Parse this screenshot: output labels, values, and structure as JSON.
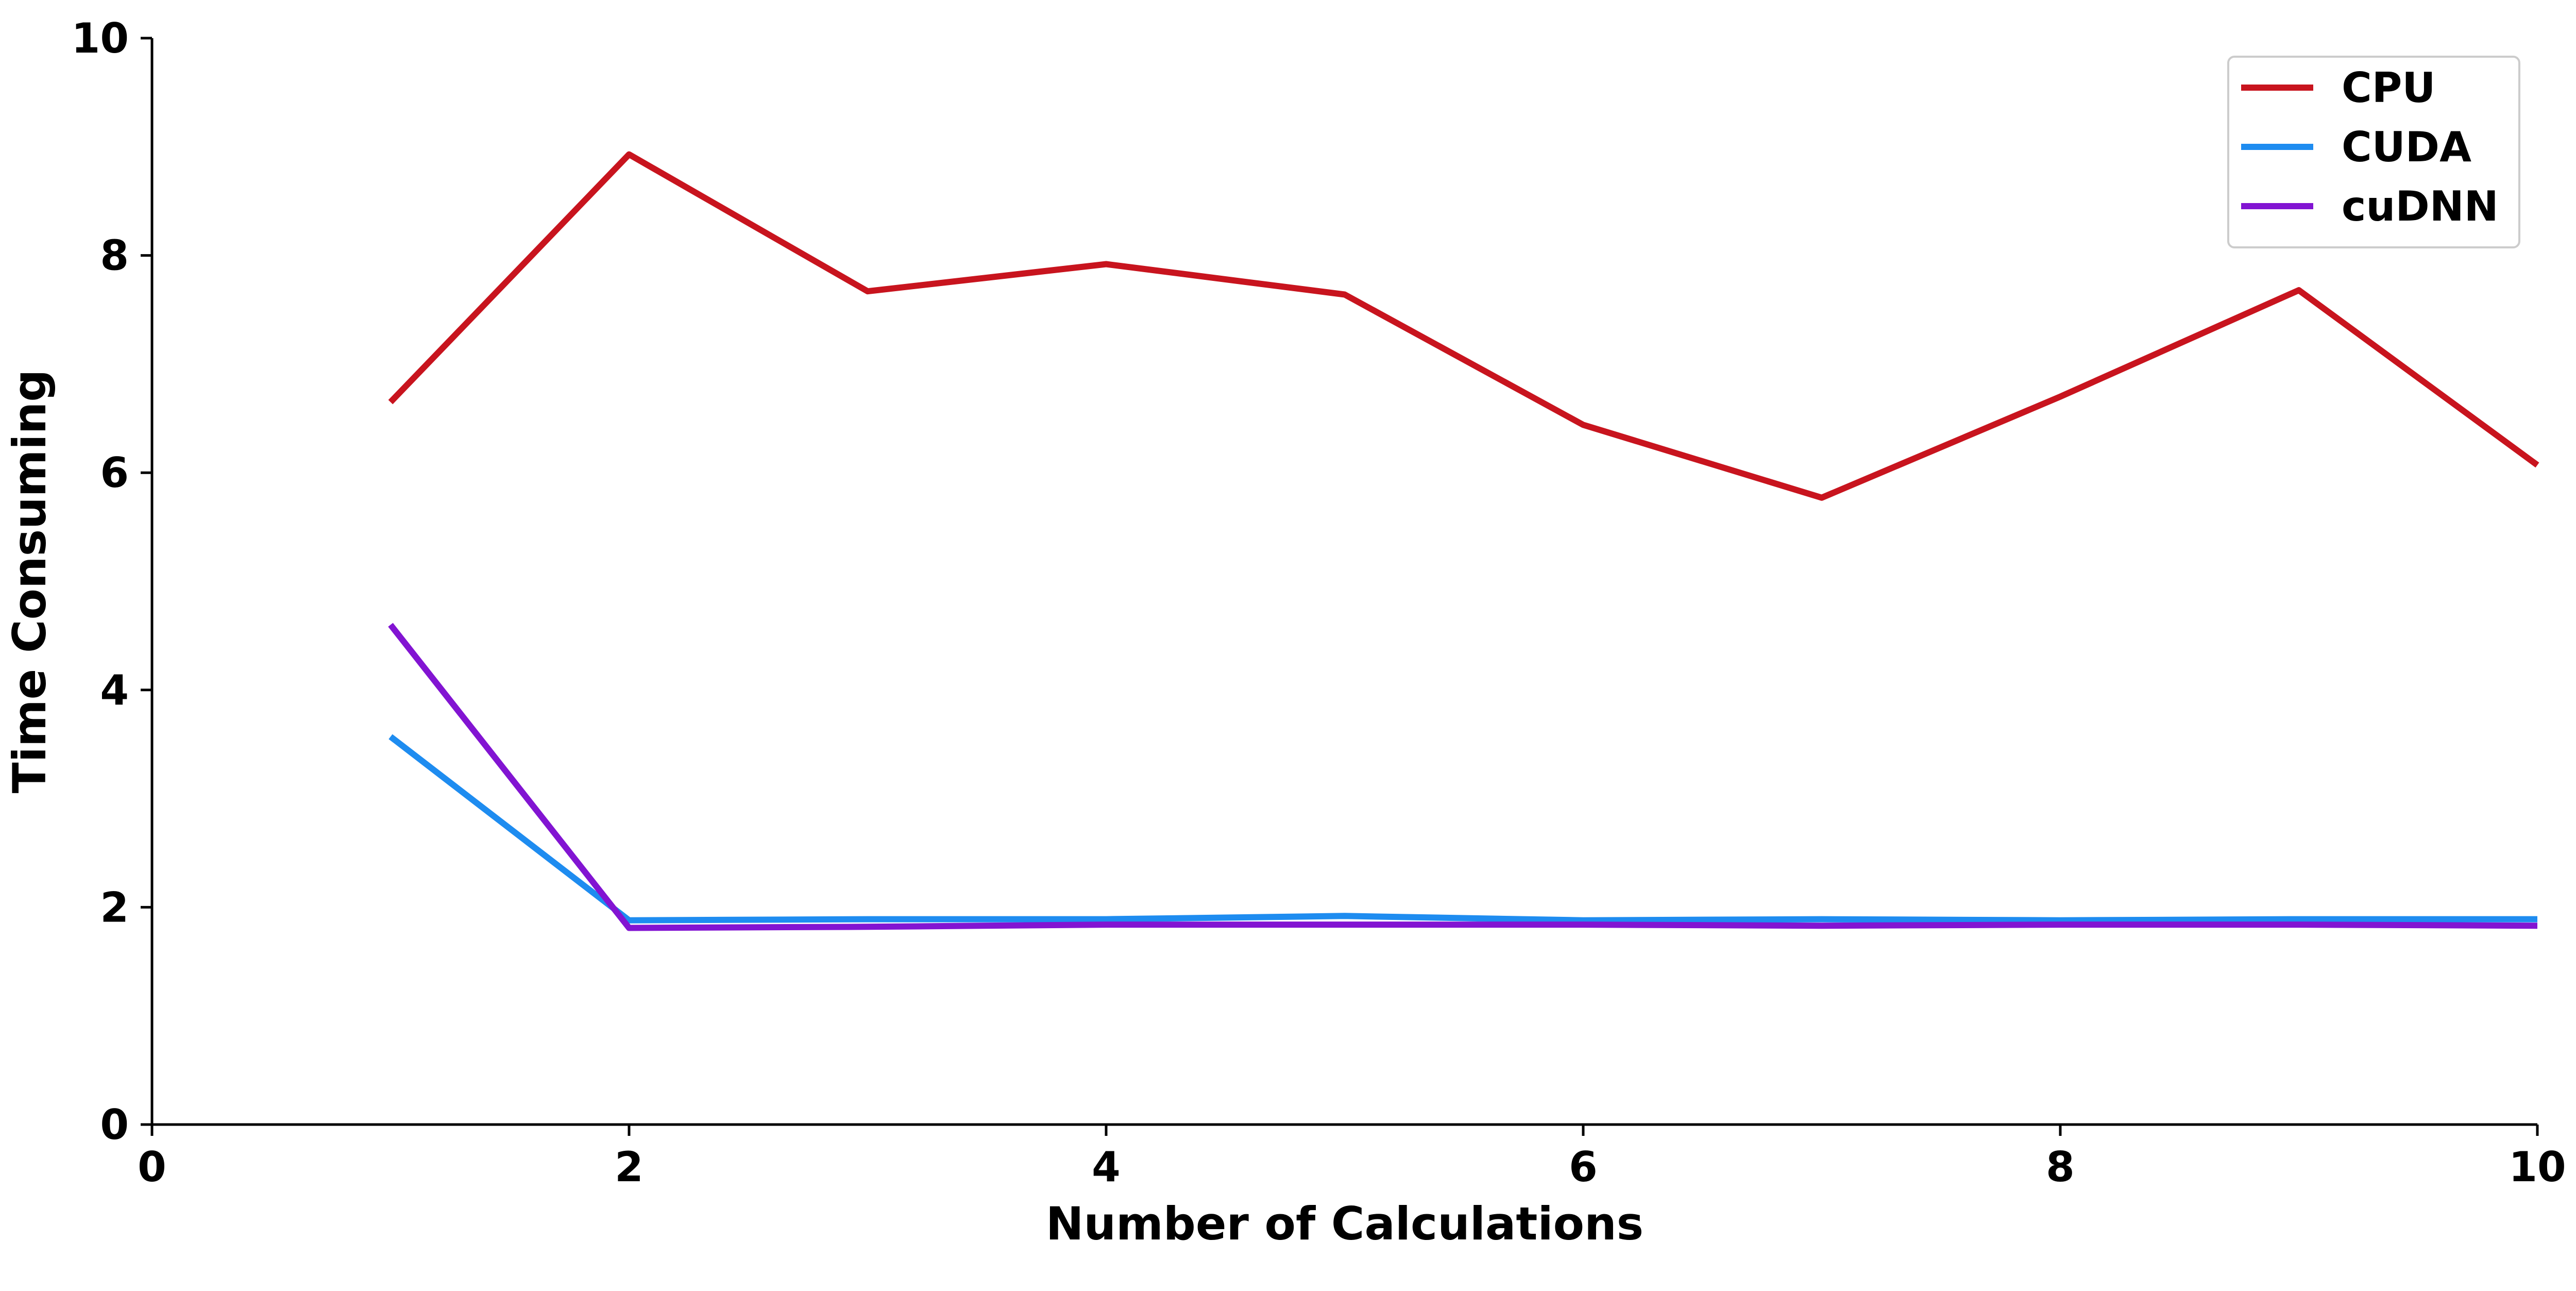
{
  "chart_data": {
    "type": "line",
    "xlabel": "Number of Calculations",
    "ylabel": "Time Consuming",
    "xlim": [
      0,
      10
    ],
    "ylim": [
      0,
      10
    ],
    "xticks": [
      0,
      2,
      4,
      6,
      8,
      10
    ],
    "yticks": [
      0,
      2,
      4,
      6,
      8,
      10
    ],
    "x": [
      1,
      2,
      3,
      4,
      5,
      6,
      7,
      8,
      9,
      10
    ],
    "series": [
      {
        "name": "CPU",
        "color": "#c8141e",
        "values": [
          6.65,
          8.93,
          7.67,
          7.92,
          7.64,
          6.44,
          5.77,
          6.7,
          7.68,
          6.07
        ]
      },
      {
        "name": "CUDA",
        "color": "#1e8cf0",
        "values": [
          3.57,
          1.88,
          1.89,
          1.89,
          1.92,
          1.88,
          1.89,
          1.88,
          1.89,
          1.89
        ]
      },
      {
        "name": "cuDNN",
        "color": "#8214d2",
        "values": [
          4.6,
          1.81,
          1.82,
          1.84,
          1.84,
          1.84,
          1.83,
          1.84,
          1.84,
          1.83
        ]
      }
    ],
    "grid": false,
    "legend_position": "top-right"
  }
}
